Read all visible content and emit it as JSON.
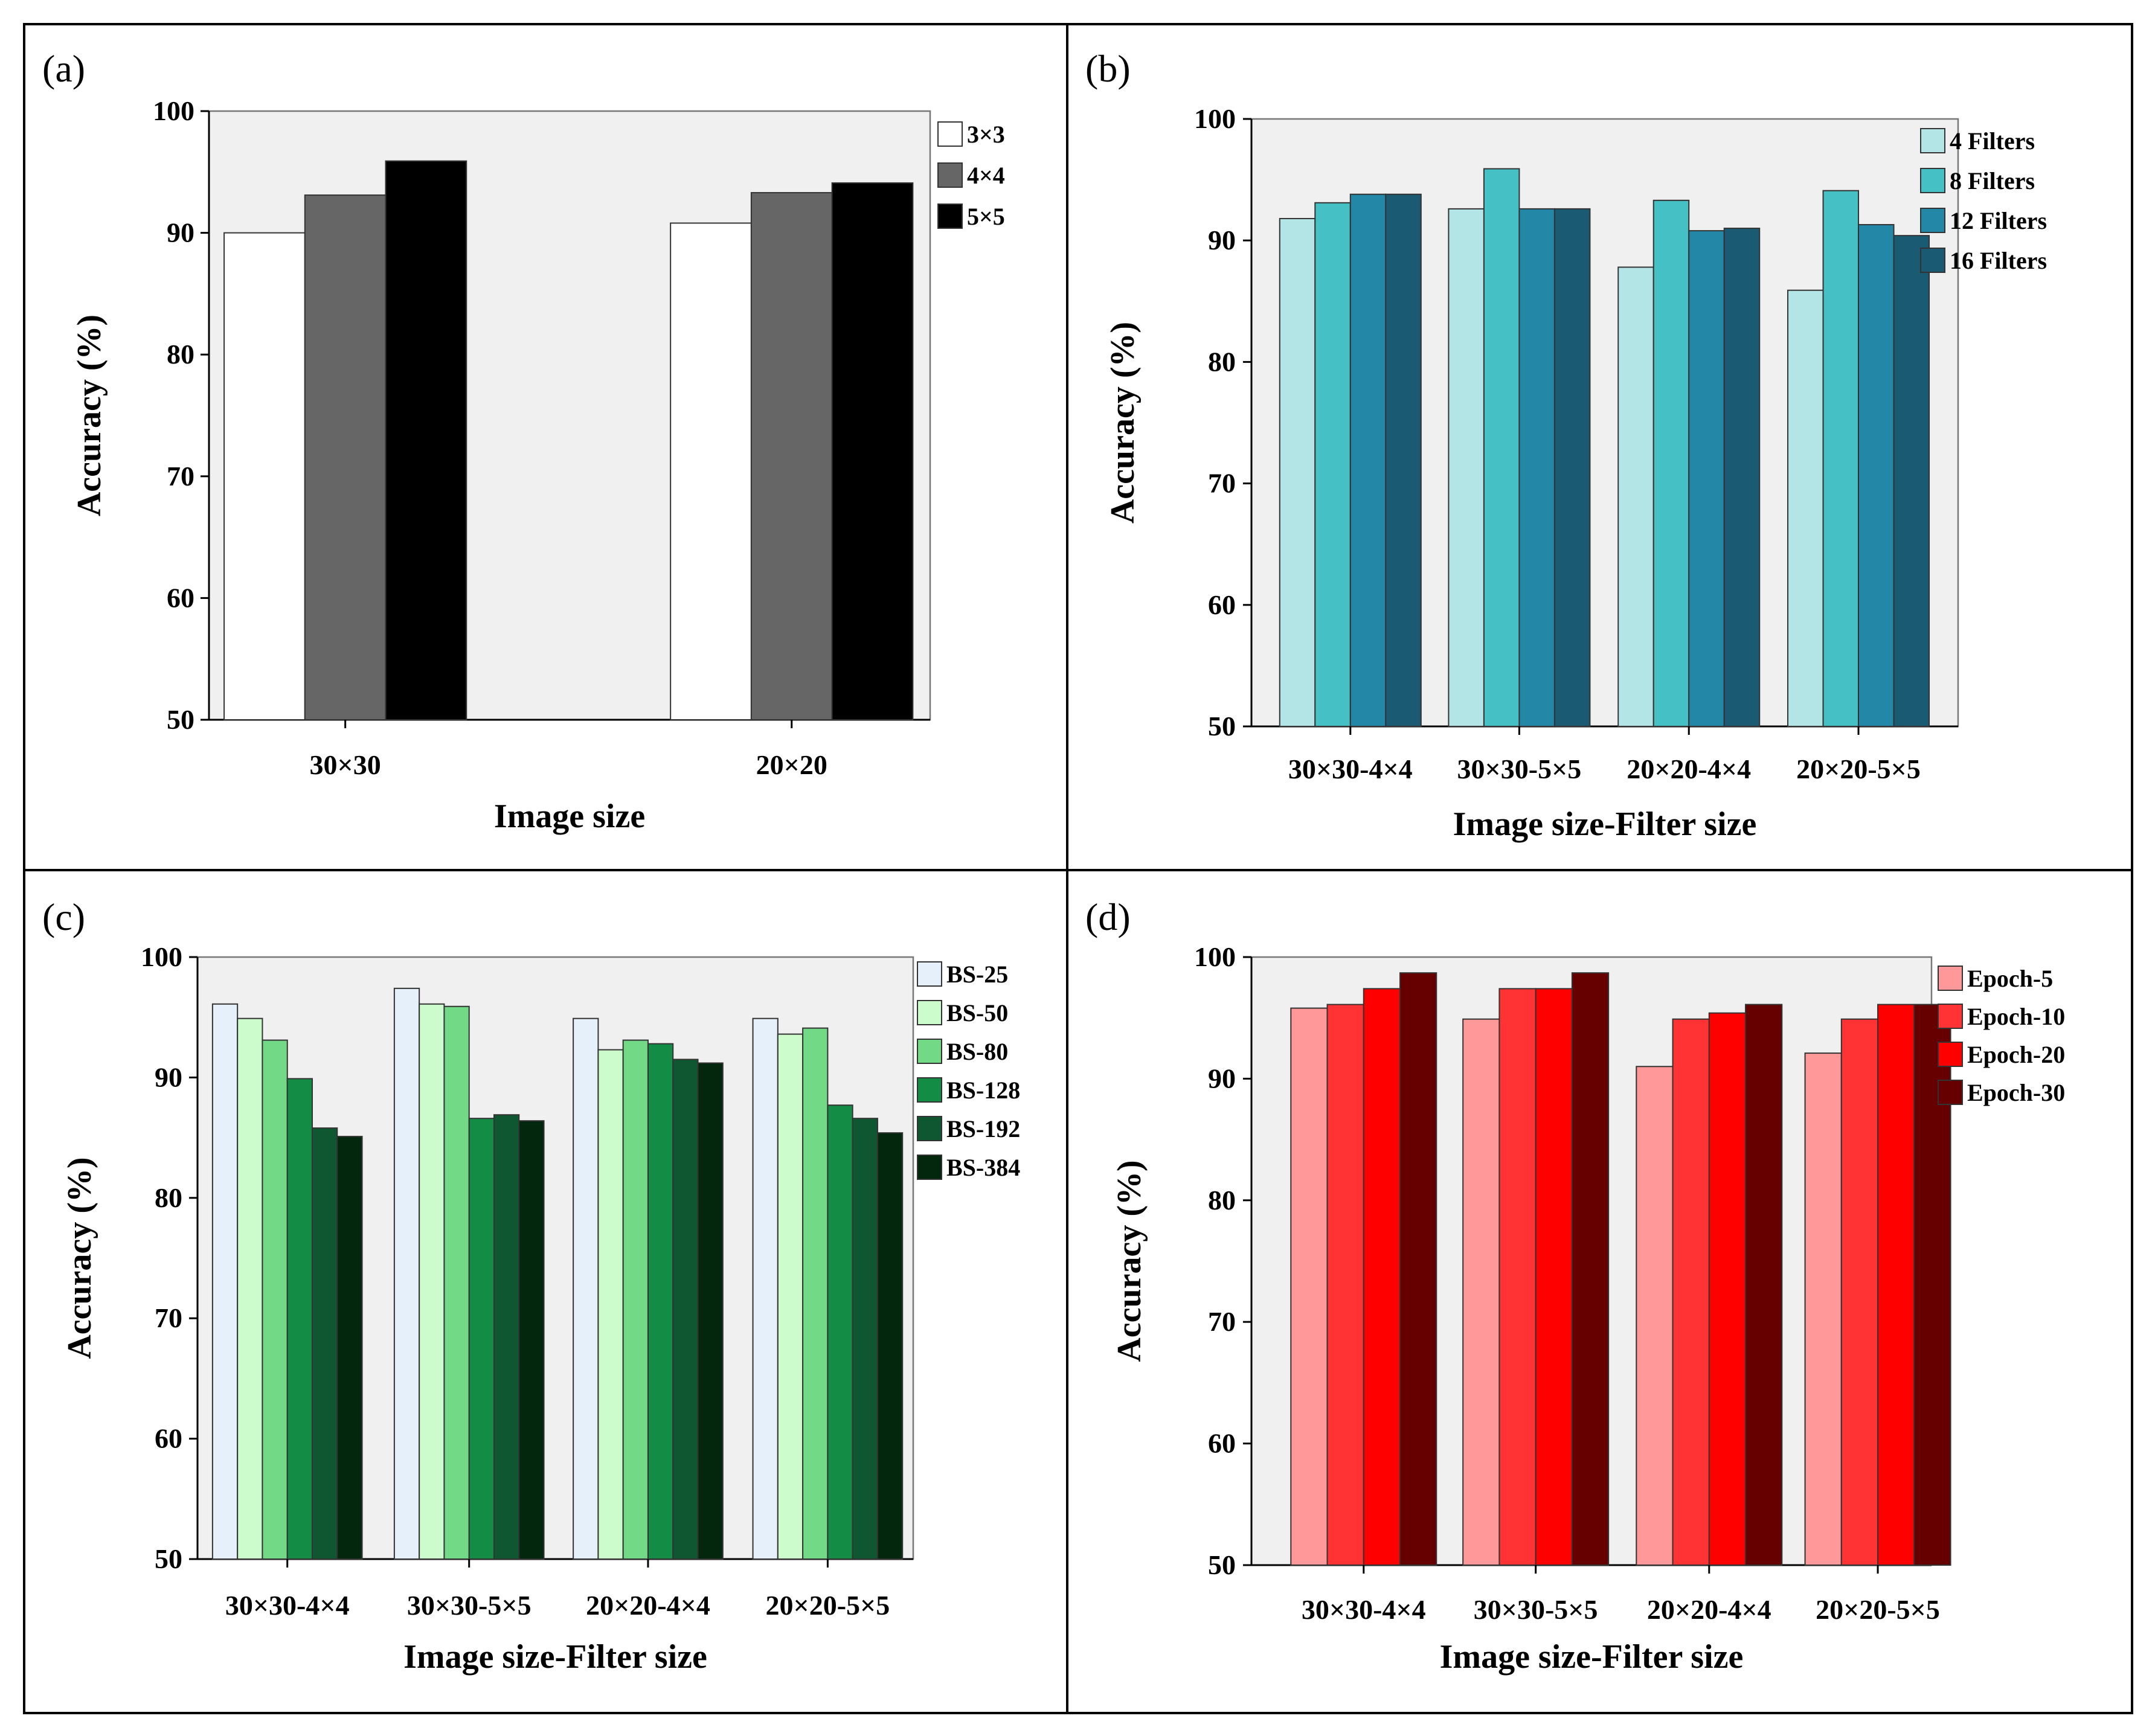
{
  "figure": {
    "panels": [
      {
        "label": "(a)",
        "colors": [
          "#ffffff",
          "#666666",
          "#000000"
        ]
      },
      {
        "label": "(b)",
        "colors": [
          "#b3e5e6",
          "#45c0c4",
          "#2387a8",
          "#1a5a73"
        ]
      },
      {
        "label": "(c)",
        "colors": [
          "#e6f0fb",
          "#ccfccc",
          "#72d986",
          "#138c45",
          "#0e5730",
          "#03270c"
        ]
      },
      {
        "label": "(d)",
        "colors": [
          "#ff9999",
          "#ff3333",
          "#ff0000",
          "#660000"
        ]
      }
    ]
  },
  "chart_data": [
    {
      "type": "bar",
      "title": "(a)",
      "xlabel": "Image size",
      "ylabel": "Accuracy (%)",
      "ylim": [
        50,
        100
      ],
      "yticks": [
        50,
        60,
        70,
        80,
        90,
        100
      ],
      "categories": [
        "30×30",
        "20×20"
      ],
      "series": [
        {
          "name": "3×3",
          "values": [
            90.0,
            90.8
          ]
        },
        {
          "name": "4×4",
          "values": [
            93.1,
            93.3
          ]
        },
        {
          "name": "5×5",
          "values": [
            95.9,
            94.1
          ]
        }
      ]
    },
    {
      "type": "bar",
      "title": "(b)",
      "xlabel": "Image size-Filter size",
      "ylabel": "Accuracy (%)",
      "ylim": [
        50,
        100
      ],
      "yticks": [
        50,
        60,
        70,
        80,
        90,
        100
      ],
      "categories": [
        "30×30-4×4",
        "30×30-5×5",
        "20×20-4×4",
        "20×20-5×5"
      ],
      "series": [
        {
          "name": "4 Filters",
          "values": [
            91.8,
            92.6,
            87.8,
            85.9
          ]
        },
        {
          "name": "8 Filters",
          "values": [
            93.1,
            95.9,
            93.3,
            94.1
          ]
        },
        {
          "name": "12 Filters",
          "values": [
            93.8,
            92.6,
            90.8,
            91.3
          ]
        },
        {
          "name": "16 Filters",
          "values": [
            93.8,
            92.6,
            91.0,
            90.4
          ]
        }
      ]
    },
    {
      "type": "bar",
      "title": "(c)",
      "xlabel": "Image size-Filter size",
      "ylabel": "Accuracy (%)",
      "ylim": [
        50,
        100
      ],
      "yticks": [
        50,
        60,
        70,
        80,
        90,
        100
      ],
      "categories": [
        "30×30-4×4",
        "30×30-5×5",
        "20×20-4×4",
        "20×20-5×5"
      ],
      "series": [
        {
          "name": "BS-25",
          "values": [
            96.1,
            97.4,
            94.9,
            94.9
          ]
        },
        {
          "name": "BS-50",
          "values": [
            94.9,
            96.1,
            92.3,
            93.6
          ]
        },
        {
          "name": "BS-80",
          "values": [
            93.1,
            95.9,
            93.1,
            94.1
          ]
        },
        {
          "name": "BS-128",
          "values": [
            89.9,
            86.6,
            92.8,
            87.7
          ]
        },
        {
          "name": "BS-192",
          "values": [
            85.8,
            86.9,
            91.5,
            86.6
          ]
        },
        {
          "name": "BS-384",
          "values": [
            85.1,
            86.4,
            91.2,
            85.4
          ]
        }
      ]
    },
    {
      "type": "bar",
      "title": "(d)",
      "xlabel": "Image size-Filter size",
      "ylabel": "Accuracy (%)",
      "ylim": [
        50,
        100
      ],
      "yticks": [
        50,
        60,
        70,
        80,
        90,
        100
      ],
      "categories": [
        "30×30-4×4",
        "30×30-5×5",
        "20×20-4×4",
        "20×20-5×5"
      ],
      "series": [
        {
          "name": "Epoch-5",
          "values": [
            95.8,
            94.9,
            91.0,
            92.1
          ]
        },
        {
          "name": "Epoch-10",
          "values": [
            96.1,
            97.4,
            94.9,
            94.9
          ]
        },
        {
          "name": "Epoch-20",
          "values": [
            97.4,
            97.4,
            95.4,
            96.1
          ]
        },
        {
          "name": "Epoch-30",
          "values": [
            98.7,
            98.7,
            96.1,
            96.1
          ]
        }
      ]
    }
  ]
}
